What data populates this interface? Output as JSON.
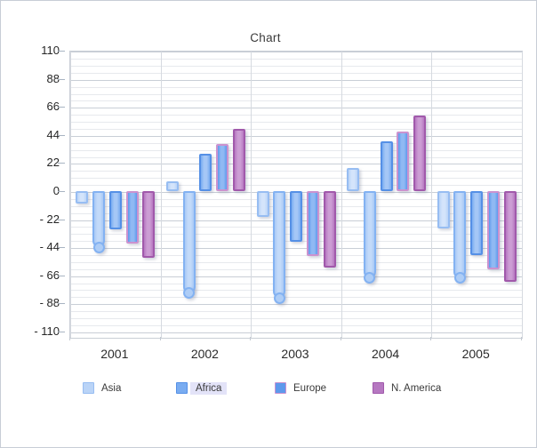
{
  "window": {
    "title": "Chart"
  },
  "chart_data": {
    "type": "bar",
    "title": "Chart",
    "categories": [
      "2001",
      "2002",
      "2003",
      "2004",
      "2005"
    ],
    "series": [
      {
        "name": "Asia",
        "in_legend": true,
        "style": "flat",
        "values": [
          -10,
          8,
          -20,
          18,
          -29
        ],
        "fill": "#bad4f7",
        "fill_light": "#d4e4fb",
        "border": "#97bdf2"
      },
      {
        "name": "",
        "in_legend": false,
        "style": "rounded-cap",
        "values": [
          -44,
          -80,
          -84,
          -68,
          -68
        ],
        "fill": "#a8c9f6",
        "fill_light": "#c3daf9",
        "border": "#83b2f2",
        "dot_fill": "#aecdf6"
      },
      {
        "name": "Africa",
        "in_legend": true,
        "style": "flat",
        "legend_highlight": true,
        "values": [
          -30,
          29,
          -40,
          39,
          -50
        ],
        "fill": "#79acf1",
        "fill_light": "#a5c7f6",
        "border": "#5590e6"
      },
      {
        "name": "Europe",
        "in_legend": true,
        "style": "flat",
        "values": [
          -41,
          37,
          -51,
          47,
          -61
        ],
        "fill": "#5e99ec",
        "fill_light": "#90b9f3",
        "border": "#cb92cf"
      },
      {
        "name": "N. America",
        "in_legend": true,
        "style": "flat",
        "values": [
          -52,
          49,
          -60,
          59,
          -71
        ],
        "fill": "#b678c1",
        "fill_light": "#cc9dd4",
        "border": "#a159ab"
      }
    ],
    "y_ticks": [
      110,
      88,
      66,
      44,
      22,
      0,
      -22,
      -44,
      -66,
      -88,
      -110
    ],
    "y_tick_labels": [
      "110",
      "88",
      "66",
      "44",
      "22",
      "0",
      "- 22",
      "- 44",
      "- 66",
      "- 88",
      "- 110"
    ],
    "ylim": [
      -110,
      110
    ],
    "minor_tick_step": 5.5,
    "grid": true,
    "legend_position": "bottom",
    "colors": {
      "grid_major": "#c9ced6",
      "grid_minor": "#e7e9ed",
      "plot_border": "#c9ced6",
      "legend_selection_highlight": "#e3e3f8",
      "axis_text": "#262626",
      "title_text": "#3a3a3a"
    }
  }
}
